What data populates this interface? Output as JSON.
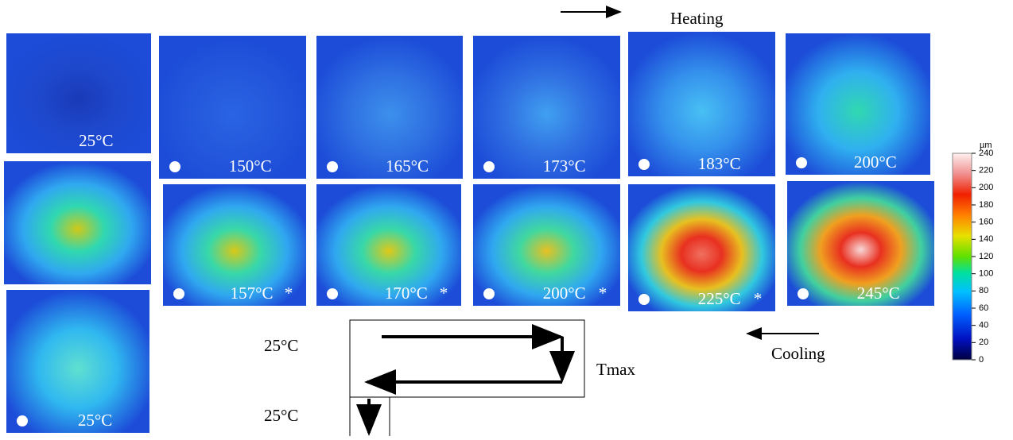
{
  "header": {
    "heating": "Heating",
    "cooling": "Cooling"
  },
  "panels": [
    {
      "label": "25°C"
    },
    {
      "label": "150°C"
    },
    {
      "label": "165°C"
    },
    {
      "label": "173°C"
    },
    {
      "label": "183°C"
    },
    {
      "label": "200°C"
    },
    {
      "label": null
    },
    {
      "label": "157°C",
      "note": "*"
    },
    {
      "label": "170°C",
      "note": "*"
    },
    {
      "label": "200°C",
      "note": "*"
    },
    {
      "label": "225°C",
      "note": "*"
    },
    {
      "label": "245°C"
    },
    {
      "label": "25°C"
    }
  ],
  "schematic": {
    "start": "25°C",
    "end": "25°C",
    "peak": "Tmax"
  },
  "colorbar": {
    "unit": "µm",
    "range": [
      0,
      240
    ],
    "ticks": [
      0,
      20,
      40,
      60,
      80,
      100,
      120,
      140,
      160,
      180,
      200,
      220,
      240
    ]
  }
}
